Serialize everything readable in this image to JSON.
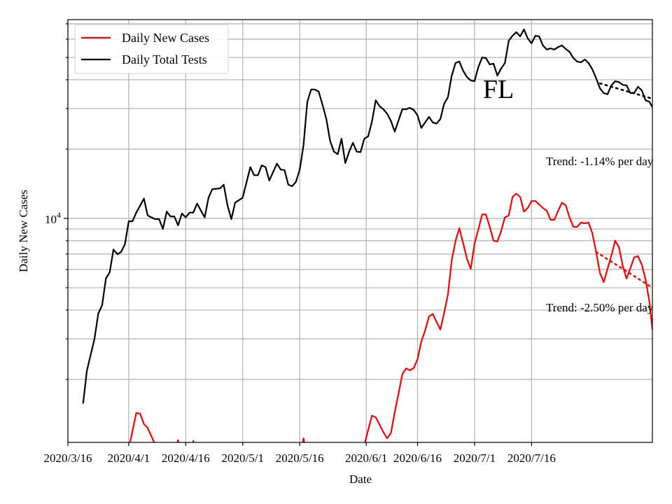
{
  "chart_data": {
    "type": "line",
    "title": "FL",
    "xlabel": "Date",
    "ylabel": "Daily New Cases",
    "yscale": "log",
    "ylim": [
      1065,
      73000
    ],
    "x_origin": "2020/3/16",
    "xlim": [
      0,
      153.8
    ],
    "grid": true,
    "legend_position": "top-left",
    "x_ticks": [
      {
        "day": 0,
        "label": "2020/3/16"
      },
      {
        "day": 16,
        "label": "2020/4/1"
      },
      {
        "day": 31,
        "label": "2020/4/16"
      },
      {
        "day": 46,
        "label": "2020/5/1"
      },
      {
        "day": 61,
        "label": "2020/5/16"
      },
      {
        "day": 78.5,
        "label": "2020/6/1"
      },
      {
        "day": 92,
        "label": "2020/6/16"
      },
      {
        "day": 107,
        "label": "2020/7/1"
      },
      {
        "day": 122,
        "label": "2020/7/16"
      }
    ],
    "y_major_ticks": [
      {
        "value": 10000,
        "base": "10",
        "exp": "4"
      }
    ],
    "y_minor_ticks": [
      2000,
      3000,
      4000,
      5000,
      6000,
      7000,
      8000,
      9000,
      20000,
      30000,
      40000,
      50000,
      60000,
      70000
    ],
    "series": [
      {
        "name": "Daily New Cases",
        "color": "#ff0000",
        "points": [
          [
            16,
            1000
          ],
          [
            18,
            1430
          ],
          [
            19,
            1420
          ],
          [
            20,
            1280
          ],
          [
            21,
            1230
          ],
          [
            22,
            1130
          ],
          [
            23,
            1040
          ],
          [
            24,
            900
          ],
          [
            28,
            900
          ],
          [
            29,
            1090
          ],
          [
            30,
            900
          ],
          [
            32,
            900
          ],
          [
            33,
            1080
          ],
          [
            34,
            900
          ],
          [
            61,
            900
          ],
          [
            62,
            1110
          ],
          [
            63,
            900
          ],
          [
            77,
            900
          ],
          [
            78,
            1040
          ],
          [
            80,
            1390
          ],
          [
            81,
            1370
          ],
          [
            82,
            1270
          ],
          [
            83,
            1180
          ],
          [
            84,
            1110
          ],
          [
            85,
            1170
          ],
          [
            86,
            1440
          ],
          [
            87,
            1730
          ],
          [
            88,
            2110
          ],
          [
            89,
            2230
          ],
          [
            90,
            2190
          ],
          [
            91,
            2240
          ],
          [
            92,
            2450
          ],
          [
            93,
            2920
          ],
          [
            94,
            3260
          ],
          [
            95,
            3750
          ],
          [
            96,
            3850
          ],
          [
            97,
            3550
          ],
          [
            98,
            3290
          ],
          [
            99,
            3890
          ],
          [
            100,
            4670
          ],
          [
            101,
            6570
          ],
          [
            102,
            8000
          ],
          [
            103,
            9060
          ],
          [
            104,
            7820
          ],
          [
            105,
            6670
          ],
          [
            106,
            6040
          ],
          [
            107,
            7770
          ],
          [
            108,
            8940
          ],
          [
            109,
            10400
          ],
          [
            110,
            10400
          ],
          [
            111,
            9190
          ],
          [
            112,
            8000
          ],
          [
            113,
            7940
          ],
          [
            114,
            8810
          ],
          [
            115,
            10100
          ],
          [
            116,
            10300
          ],
          [
            117,
            12400
          ],
          [
            118,
            12800
          ],
          [
            119,
            12400
          ],
          [
            120,
            10700
          ],
          [
            121,
            11100
          ],
          [
            122,
            11900
          ],
          [
            123,
            11900
          ],
          [
            124,
            11500
          ],
          [
            125,
            11100
          ],
          [
            126,
            10800
          ],
          [
            127,
            9860
          ],
          [
            128,
            9860
          ],
          [
            129,
            10800
          ],
          [
            130,
            11700
          ],
          [
            131,
            11400
          ],
          [
            132,
            10100
          ],
          [
            133,
            9190
          ],
          [
            134,
            9190
          ],
          [
            135,
            9590
          ],
          [
            136,
            9520
          ],
          [
            137,
            9590
          ],
          [
            138,
            8630
          ],
          [
            139,
            7150
          ],
          [
            140,
            5790
          ],
          [
            141,
            5290
          ],
          [
            142,
            6040
          ],
          [
            143,
            6900
          ],
          [
            144,
            8000
          ],
          [
            145,
            7500
          ],
          [
            146,
            6210
          ],
          [
            147,
            5480
          ],
          [
            148,
            6070
          ],
          [
            149,
            6770
          ],
          [
            150,
            6860
          ],
          [
            151,
            6300
          ],
          [
            152,
            5440
          ],
          [
            153,
            4350
          ],
          [
            153.8,
            3280
          ]
        ]
      },
      {
        "name": "Daily Total Tests",
        "color": "#000000",
        "points": [
          [
            4,
            1570
          ],
          [
            5,
            2180
          ],
          [
            7,
            3000
          ],
          [
            8,
            3860
          ],
          [
            9,
            4200
          ],
          [
            10,
            5480
          ],
          [
            11,
            5830
          ],
          [
            12,
            7330
          ],
          [
            13,
            6990
          ],
          [
            14,
            7150
          ],
          [
            15,
            7710
          ],
          [
            16,
            9720
          ],
          [
            17,
            9720
          ],
          [
            18,
            10600
          ],
          [
            20,
            12200
          ],
          [
            21,
            10300
          ],
          [
            22,
            10100
          ],
          [
            23,
            9930
          ],
          [
            24,
            9930
          ],
          [
            25,
            9000
          ],
          [
            26,
            10700
          ],
          [
            27,
            10200
          ],
          [
            28,
            10200
          ],
          [
            29,
            9330
          ],
          [
            30,
            10500
          ],
          [
            31,
            10100
          ],
          [
            32,
            10600
          ],
          [
            33,
            10600
          ],
          [
            34,
            11600
          ],
          [
            36,
            10100
          ],
          [
            37,
            12300
          ],
          [
            38,
            13400
          ],
          [
            40,
            13500
          ],
          [
            41,
            14000
          ],
          [
            42,
            11400
          ],
          [
            43,
            9930
          ],
          [
            44,
            11700
          ],
          [
            46,
            12300
          ],
          [
            48,
            16700
          ],
          [
            49,
            15400
          ],
          [
            50,
            15400
          ],
          [
            51,
            17000
          ],
          [
            52,
            16700
          ],
          [
            53,
            14600
          ],
          [
            55,
            17300
          ],
          [
            56,
            16300
          ],
          [
            57,
            16200
          ],
          [
            58,
            14000
          ],
          [
            59,
            13800
          ],
          [
            60,
            14400
          ],
          [
            61,
            16300
          ],
          [
            62,
            20800
          ],
          [
            63,
            32100
          ],
          [
            64,
            36300
          ],
          [
            65,
            36300
          ],
          [
            66,
            35500
          ],
          [
            67,
            31100
          ],
          [
            68,
            27000
          ],
          [
            69,
            21700
          ],
          [
            70,
            19500
          ],
          [
            71,
            19000
          ],
          [
            72,
            22200
          ],
          [
            73,
            17400
          ],
          [
            74,
            19500
          ],
          [
            75,
            21300
          ],
          [
            76,
            19500
          ],
          [
            77,
            19400
          ],
          [
            78,
            22200
          ],
          [
            79,
            22700
          ],
          [
            80,
            26300
          ],
          [
            81,
            32600
          ],
          [
            82,
            30700
          ],
          [
            83,
            29800
          ],
          [
            84,
            28500
          ],
          [
            85,
            26500
          ],
          [
            86,
            23800
          ],
          [
            87,
            26600
          ],
          [
            88,
            29800
          ],
          [
            89,
            29800
          ],
          [
            90,
            30200
          ],
          [
            91,
            29600
          ],
          [
            92,
            28000
          ],
          [
            93,
            24700
          ],
          [
            94,
            26100
          ],
          [
            95,
            27600
          ],
          [
            96,
            26100
          ],
          [
            97,
            25800
          ],
          [
            98,
            27000
          ],
          [
            99,
            31500
          ],
          [
            100,
            33600
          ],
          [
            101,
            41700
          ],
          [
            102,
            47300
          ],
          [
            103,
            48000
          ],
          [
            104,
            43800
          ],
          [
            105,
            41100
          ],
          [
            106,
            39700
          ],
          [
            107,
            39400
          ],
          [
            108,
            45400
          ],
          [
            109,
            50000
          ],
          [
            110,
            49700
          ],
          [
            111,
            46600
          ],
          [
            112,
            47000
          ],
          [
            113,
            41700
          ],
          [
            114,
            44800
          ],
          [
            115,
            47300
          ],
          [
            116,
            59100
          ],
          [
            117,
            62100
          ],
          [
            118,
            64400
          ],
          [
            119,
            61700
          ],
          [
            120,
            66200
          ],
          [
            121,
            60500
          ],
          [
            122,
            57600
          ],
          [
            123,
            62100
          ],
          [
            124,
            61700
          ],
          [
            125,
            56400
          ],
          [
            126,
            54100
          ],
          [
            127,
            54800
          ],
          [
            128,
            54100
          ],
          [
            129,
            55500
          ],
          [
            130,
            56400
          ],
          [
            131,
            54400
          ],
          [
            132,
            52900
          ],
          [
            133,
            49700
          ],
          [
            134,
            48000
          ],
          [
            135,
            47600
          ],
          [
            136,
            49000
          ],
          [
            137,
            47300
          ],
          [
            138,
            44400
          ],
          [
            139,
            40600
          ],
          [
            140,
            36700
          ],
          [
            141,
            35000
          ],
          [
            142,
            34600
          ],
          [
            143,
            37800
          ],
          [
            144,
            39400
          ],
          [
            145,
            39100
          ],
          [
            146,
            38000
          ],
          [
            147,
            37800
          ],
          [
            148,
            35000
          ],
          [
            149,
            35000
          ],
          [
            150,
            37300
          ],
          [
            151,
            36000
          ],
          [
            152,
            32600
          ],
          [
            153,
            32100
          ],
          [
            153.8,
            30400
          ]
        ]
      }
    ],
    "trends": [
      {
        "series": "Daily Total Tests",
        "color": "#000000",
        "from": [
          140,
          38600
        ],
        "to": [
          153.8,
          33100
        ],
        "label": "Trend: -1.14% per day"
      },
      {
        "series": "Daily New Cases",
        "color": "#ff0000",
        "from": [
          139,
          7150
        ],
        "to": [
          153.8,
          5000
        ],
        "label": "Trend: -2.50% per day"
      }
    ]
  }
}
